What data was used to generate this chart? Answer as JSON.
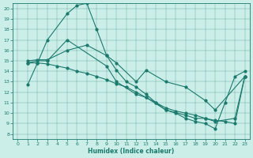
{
  "xlabel": "Humidex (Indice chaleur)",
  "bg_color": "#cceee8",
  "line_color": "#1a7a6e",
  "xlim": [
    -0.5,
    23.5
  ],
  "ylim": [
    7.5,
    20.5
  ],
  "yticks": [
    8,
    9,
    10,
    11,
    12,
    13,
    14,
    15,
    16,
    17,
    18,
    19,
    20
  ],
  "xticks": [
    0,
    1,
    2,
    3,
    4,
    5,
    6,
    7,
    8,
    9,
    10,
    11,
    12,
    13,
    14,
    15,
    16,
    17,
    18,
    19,
    20,
    21,
    22,
    23
  ],
  "line1_x": [
    1,
    2,
    3,
    5,
    6,
    7,
    8,
    9,
    10,
    11,
    12,
    13,
    14,
    15,
    16,
    17,
    18,
    19,
    20,
    21,
    22,
    23
  ],
  "line1_y": [
    12.7,
    14.8,
    17.0,
    19.5,
    20.3,
    20.5,
    18.0,
    15.5,
    14.1,
    13.0,
    12.5,
    11.8,
    11.0,
    10.3,
    10.0,
    9.5,
    9.2,
    9.0,
    8.5,
    11.0,
    13.5,
    14.0
  ],
  "line2_x": [
    1,
    2,
    3,
    5,
    7,
    9,
    10,
    12,
    13,
    15,
    17,
    19,
    20,
    23
  ],
  "line2_y": [
    15.0,
    15.1,
    15.1,
    16.0,
    16.5,
    15.5,
    14.8,
    13.0,
    14.1,
    13.0,
    12.5,
    11.2,
    10.3,
    13.5
  ],
  "line3_x": [
    1,
    2,
    3,
    5,
    9,
    10,
    12,
    13,
    15,
    17,
    18,
    19,
    20,
    22,
    23
  ],
  "line3_y": [
    14.8,
    15.0,
    15.0,
    17.0,
    14.5,
    13.0,
    11.8,
    11.5,
    10.3,
    9.8,
    9.5,
    9.5,
    9.2,
    9.5,
    13.5
  ],
  "line4_x": [
    1,
    2,
    3,
    4,
    5,
    6,
    7,
    8,
    9,
    10,
    11,
    12,
    13,
    14,
    15,
    16,
    17,
    18,
    19,
    20,
    21,
    22,
    23
  ],
  "line4_y": [
    14.8,
    14.8,
    14.7,
    14.5,
    14.3,
    14.0,
    13.8,
    13.5,
    13.2,
    12.8,
    12.5,
    12.0,
    11.5,
    11.0,
    10.5,
    10.2,
    10.0,
    9.8,
    9.5,
    9.3,
    9.2,
    9.0,
    13.5
  ]
}
